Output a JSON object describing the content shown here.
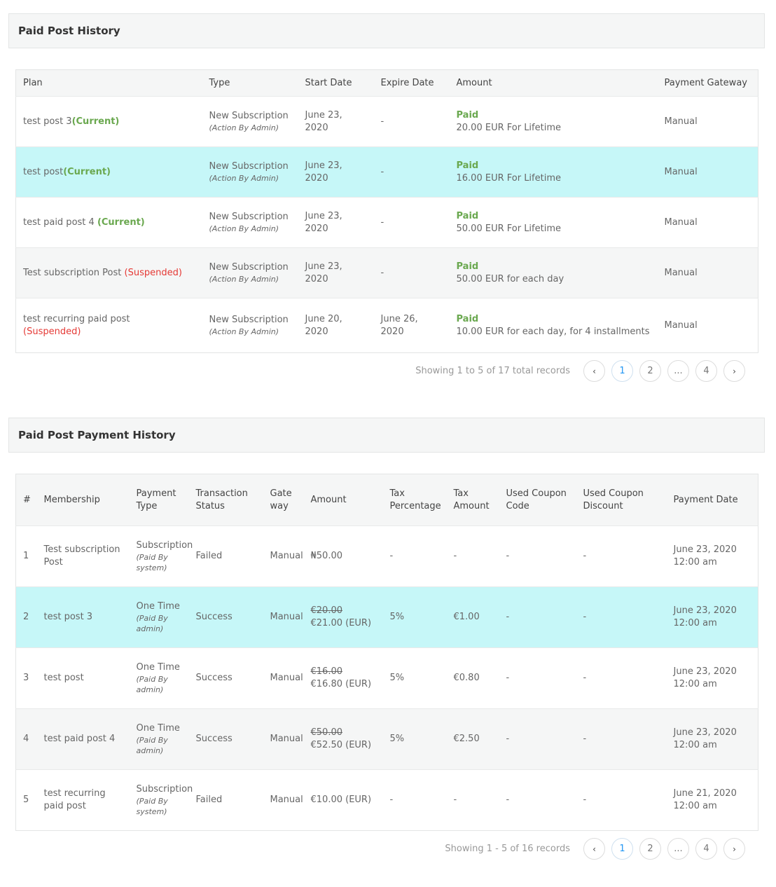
{
  "history": {
    "title": "Paid Post History",
    "columns": [
      "Plan",
      "Type",
      "Start Date",
      "Expire Date",
      "Amount",
      "Payment Gateway"
    ],
    "rows": [
      {
        "plan": "test post 3",
        "status": "(Current)",
        "type": "New Subscription",
        "by": "(Action By Admin)",
        "start": "June 23, 2020",
        "expire": "-",
        "paid": "Paid",
        "amount": "20.00 EUR For Lifetime",
        "gateway": "Manual"
      },
      {
        "plan": "test post",
        "status": "(Current)",
        "type": "New Subscription",
        "by": "(Action By Admin)",
        "start": "June 23, 2020",
        "expire": "-",
        "paid": "Paid",
        "amount": "16.00 EUR For Lifetime",
        "gateway": "Manual"
      },
      {
        "plan": "test paid post 4 ",
        "status": "(Current)",
        "type": "New Subscription",
        "by": "(Action By Admin)",
        "start": "June 23, 2020",
        "expire": "-",
        "paid": "Paid",
        "amount": "50.00 EUR For Lifetime",
        "gateway": "Manual"
      },
      {
        "plan": "Test subscription Post ",
        "status": "(Suspended)",
        "type": "New Subscription",
        "by": "(Action By Admin)",
        "start": "June 23, 2020",
        "expire": "-",
        "paid": "Paid",
        "amount": "50.00 EUR for each day",
        "gateway": "Manual"
      },
      {
        "plan": "test recurring paid post",
        "status": "(Suspended)",
        "type": "New Subscription",
        "by": "(Action By Admin)",
        "start": "June 20, 2020",
        "expire": "June 26, 2020",
        "paid": "Paid",
        "amount": "10.00 EUR for each day, for 4 installments",
        "gateway": "Manual"
      }
    ],
    "pager": {
      "info": "Showing 1 to 5 of 17 total records",
      "pages": [
        "1",
        "2",
        "...",
        "4"
      ],
      "current": "1",
      "prev": "‹",
      "next": "›"
    }
  },
  "payments": {
    "title": "Paid Post Payment History",
    "columns": [
      "#",
      "Membership",
      "Payment Type",
      "Transaction Status",
      "Gate way",
      "Amount",
      "Tax Percentage",
      "Tax Amount",
      "Used Coupon Code",
      "Used Coupon Discount",
      "Payment Date"
    ],
    "rows": [
      {
        "num": "1",
        "membership": "Test subscription Post",
        "ptype": "Subscription",
        "by": "(Paid By system)",
        "status": "Failed",
        "gateway": "Manual",
        "orig": "",
        "amount": "₦50.00",
        "tax_pct": "-",
        "tax_amt": "-",
        "coupon": "-",
        "discount": "-",
        "date": "June 23, 2020 12:00 am"
      },
      {
        "num": "2",
        "membership": "test post 3",
        "ptype": "One Time",
        "by": "(Paid By admin)",
        "status": "Success",
        "gateway": "Manual",
        "orig": "€20.00",
        "amount": "€21.00 (EUR)",
        "tax_pct": "5%",
        "tax_amt": "€1.00",
        "coupon": "-",
        "discount": "-",
        "date": "June 23, 2020 12:00 am"
      },
      {
        "num": "3",
        "membership": "test post",
        "ptype": "One Time",
        "by": "(Paid By admin)",
        "status": "Success",
        "gateway": "Manual",
        "orig": "€16.00",
        "amount": "€16.80 (EUR)",
        "tax_pct": "5%",
        "tax_amt": "€0.80",
        "coupon": "-",
        "discount": "-",
        "date": "June 23, 2020 12:00 am"
      },
      {
        "num": "4",
        "membership": "test paid post 4",
        "ptype": "One Time",
        "by": "(Paid By admin)",
        "status": "Success",
        "gateway": "Manual",
        "orig": "€50.00",
        "amount": "€52.50 (EUR)",
        "tax_pct": "5%",
        "tax_amt": "€2.50",
        "coupon": "-",
        "discount": "-",
        "date": "June 23, 2020 12:00 am"
      },
      {
        "num": "5",
        "membership": "test recurring paid post",
        "ptype": "Subscription",
        "by": "(Paid By system)",
        "status": "Failed",
        "gateway": "Manual",
        "orig": "",
        "amount": "€10.00 (EUR)",
        "tax_pct": "-",
        "tax_amt": "-",
        "coupon": "-",
        "discount": "-",
        "date": "June 21, 2020 12:00 am"
      }
    ],
    "pager": {
      "info": "Showing 1 - 5 of 16 records",
      "pages": [
        "1",
        "2",
        "...",
        "4"
      ],
      "current": "1",
      "prev": "‹",
      "next": "›"
    }
  },
  "colors": {
    "current": "#6aa84f",
    "suspended": "#e53935",
    "highlight_row": "#c6f7f8",
    "active_page": "#2196f3"
  }
}
